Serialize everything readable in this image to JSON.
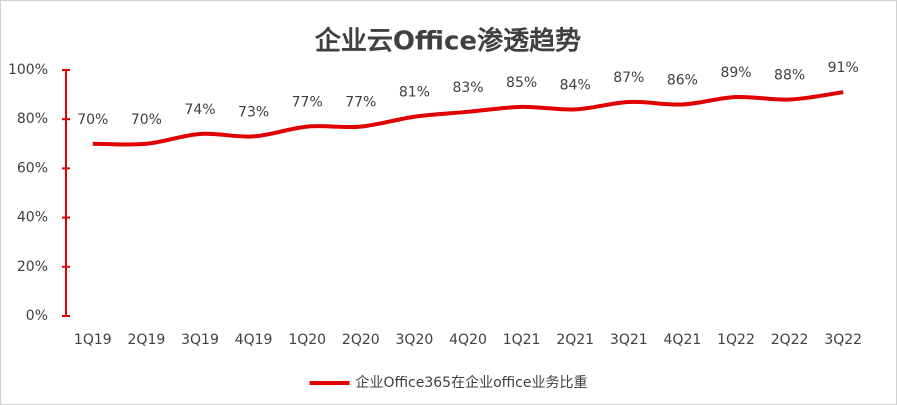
{
  "chart_data": {
    "type": "line",
    "title": "企业云Office渗透趋势",
    "categories": [
      "1Q19",
      "2Q19",
      "3Q19",
      "4Q19",
      "1Q20",
      "2Q20",
      "3Q20",
      "4Q20",
      "1Q21",
      "2Q21",
      "3Q21",
      "4Q21",
      "1Q22",
      "2Q22",
      "3Q22"
    ],
    "series": [
      {
        "name": "企业Office365在企业office业务比重",
        "color": "#e00000",
        "values": [
          70,
          70,
          74,
          73,
          77,
          77,
          81,
          83,
          85,
          84,
          87,
          86,
          89,
          88,
          91
        ],
        "value_labels": [
          "70%",
          "70%",
          "74%",
          "73%",
          "77%",
          "77%",
          "81%",
          "83%",
          "85%",
          "84%",
          "87%",
          "86%",
          "89%",
          "88%",
          "91%"
        ]
      }
    ],
    "ylim": [
      0,
      100
    ],
    "yticks": [
      {
        "value": 0,
        "label": "0%"
      },
      {
        "value": 20,
        "label": "20%"
      },
      {
        "value": 40,
        "label": "40%"
      },
      {
        "value": 60,
        "label": "60%"
      },
      {
        "value": 80,
        "label": "80%"
      },
      {
        "value": 100,
        "label": "100%"
      }
    ],
    "grid": false,
    "legend": "bottom"
  }
}
